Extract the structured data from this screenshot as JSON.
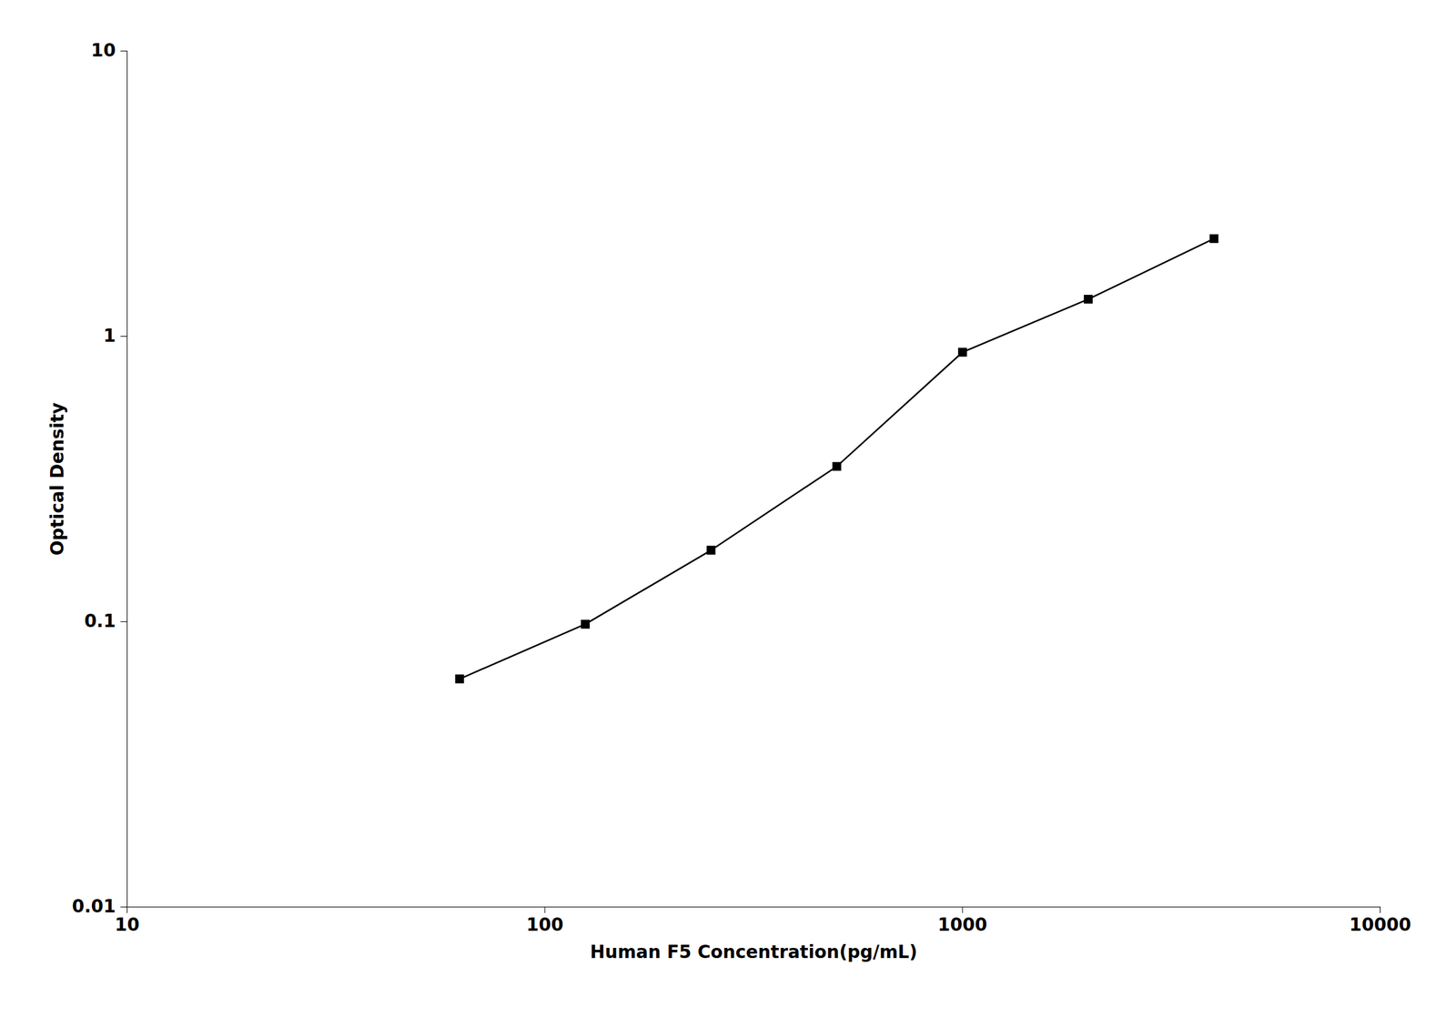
{
  "chart_data": {
    "type": "line",
    "x": [
      62.5,
      125,
      250,
      500,
      1000,
      2000,
      4000
    ],
    "values": [
      0.063,
      0.098,
      0.178,
      0.35,
      0.88,
      1.35,
      2.2
    ],
    "xlabel": "Human F5 Concentration(pg/mL)",
    "ylabel": "Optical Density",
    "xlim": [
      10,
      10000
    ],
    "ylim": [
      0.01,
      10
    ],
    "xticks": [
      10,
      100,
      1000,
      10000
    ],
    "yticks": [
      0.01,
      0.1,
      1,
      10
    ],
    "log": true,
    "grid": false,
    "color": "#000000",
    "marker": "square"
  }
}
